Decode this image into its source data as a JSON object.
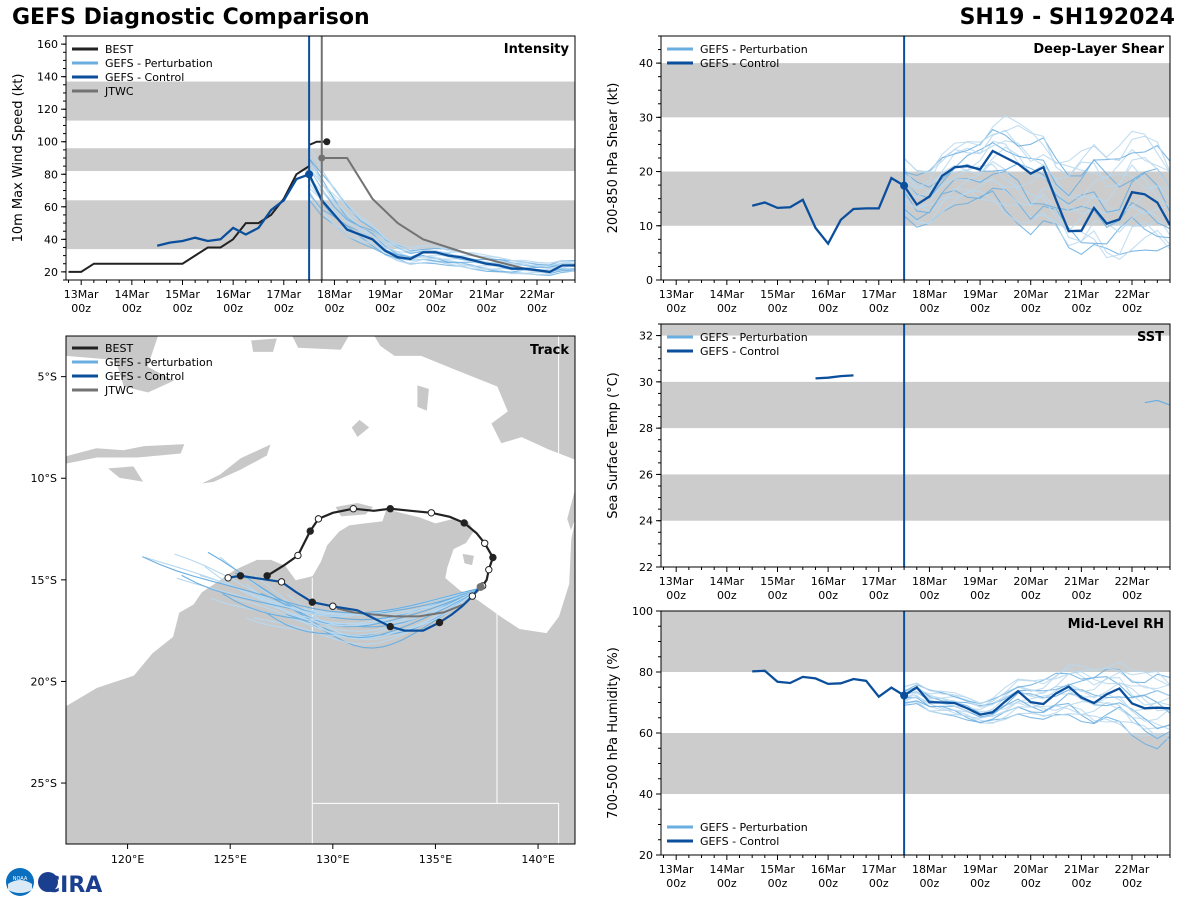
{
  "header": {
    "title": "GEFS Diagnostic Comparison",
    "storm": "SH19 - SH192024"
  },
  "logo": {
    "text": "CIRA",
    "noaa": "NOAA"
  },
  "colors": {
    "best": "#222222",
    "pert": "#6aaee0",
    "pertLight": "#b8d8ef",
    "ctrl": "#0b4f9c",
    "jtwc": "#737373",
    "band": "#cccccc",
    "land": "#c8c8c8"
  },
  "time_axis": {
    "labels": [
      {
        "day": "13Mar",
        "hour": "00z"
      },
      {
        "day": "14Mar",
        "hour": "00z"
      },
      {
        "day": "15Mar",
        "hour": "00z"
      },
      {
        "day": "16Mar",
        "hour": "00z"
      },
      {
        "day": "17Mar",
        "hour": "00z"
      },
      {
        "day": "18Mar",
        "hour": "00z"
      },
      {
        "day": "19Mar",
        "hour": "00z"
      },
      {
        "day": "20Mar",
        "hour": "00z"
      },
      {
        "day": "21Mar",
        "hour": "00z"
      },
      {
        "day": "22Mar",
        "hour": "00z"
      }
    ],
    "range": [
      -0.3,
      9.75
    ],
    "init_time": 4.5
  },
  "chart_data": [
    {
      "id": "intensity",
      "type": "line",
      "title": "Intensity",
      "ylabel": "10m Max Wind Speed (kt)",
      "ylim": [
        15,
        165
      ],
      "yticks": [
        20,
        40,
        60,
        80,
        100,
        120,
        140,
        160
      ],
      "bands": [
        [
          34,
          64
        ],
        [
          82,
          96
        ],
        [
          113,
          137
        ]
      ],
      "legend": [
        "BEST",
        "GEFS - Perturbation",
        "GEFS - Control",
        "JTWC"
      ],
      "vline_gray": 4.75,
      "best": {
        "x": [
          -0.25,
          0,
          0.25,
          0.5,
          0.75,
          1,
          1.25,
          1.5,
          1.75,
          2,
          2.25,
          2.5,
          2.75,
          3,
          3.25,
          3.5,
          3.75,
          4,
          4.25,
          4.5
        ],
        "y": [
          20,
          20,
          25,
          25,
          25,
          25,
          25,
          25,
          25,
          25,
          30,
          35,
          35,
          40,
          50,
          50,
          55,
          65,
          80,
          85
        ],
        "tail": {
          "x": [
            4.5,
            4.65,
            4.85
          ],
          "y": [
            98,
            100,
            100
          ]
        }
      },
      "control": {
        "x": [
          1.5,
          1.75,
          2,
          2.25,
          2.5,
          2.75,
          3,
          3.25,
          3.5,
          3.75,
          4,
          4.25,
          4.5,
          4.75,
          5,
          5.25,
          5.5,
          5.75,
          6,
          6.25,
          6.5,
          6.75,
          7,
          7.25,
          7.5,
          7.75,
          8,
          8.25,
          8.5,
          8.75,
          9,
          9.25,
          9.5,
          9.75
        ],
        "y": [
          36,
          38,
          39,
          41,
          39,
          40,
          47,
          43,
          47,
          58,
          64,
          77,
          80,
          64,
          55,
          46,
          43,
          40,
          33,
          29,
          28,
          32,
          32,
          30,
          29,
          27,
          25,
          24,
          22,
          22,
          21,
          20,
          24,
          24
        ]
      },
      "jtwc": {
        "x": [
          4.75,
          5.25,
          5.75,
          6.25,
          6.75,
          7.25,
          7.75,
          8.25,
          8.75,
          9.25
        ],
        "y": [
          90,
          90,
          65,
          50,
          40,
          35,
          30,
          26,
          22,
          20
        ]
      },
      "pert_envelope": {
        "x": [
          4.5,
          5,
          5.5,
          6,
          6.5,
          7,
          7.5,
          8,
          8.5,
          9,
          9.5,
          9.75
        ],
        "lo": [
          60,
          48,
          38,
          30,
          24,
          22,
          20,
          19,
          18,
          18,
          18,
          18
        ],
        "hi": [
          104,
          80,
          60,
          46,
          38,
          36,
          34,
          32,
          30,
          28,
          28,
          28
        ]
      }
    },
    {
      "id": "shear",
      "type": "line",
      "title": "Deep-Layer Shear",
      "ylabel": "200-850 hPa Shear (kt)",
      "ylim": [
        0,
        45
      ],
      "yticks": [
        0,
        10,
        20,
        30,
        40
      ],
      "bands": [
        [
          10,
          20
        ],
        [
          30,
          40
        ]
      ],
      "legend": [
        "GEFS - Perturbation",
        "GEFS - Control"
      ],
      "control": {
        "x": [
          1.5,
          1.75,
          2,
          2.25,
          2.5,
          2.75,
          3,
          3.25,
          3.5,
          3.75,
          4,
          4.25,
          4.5,
          4.75,
          5,
          5.25,
          5.5,
          5.75,
          6,
          6.25,
          6.5,
          6.75,
          7,
          7.25,
          7.5,
          7.75,
          8,
          8.25,
          8.5,
          8.75,
          9,
          9.25,
          9.5,
          9.75
        ],
        "y": [
          13.7,
          14.3,
          13.3,
          13.4,
          14.8,
          9.6,
          6.7,
          11.1,
          13.1,
          13.2,
          13.2,
          18.8,
          17.4,
          13.9,
          15.4,
          19.2,
          20.8,
          21,
          20.4,
          23.8,
          22.6,
          21.4,
          19.6,
          20.8,
          14.8,
          9,
          9.1,
          13.3,
          10.4,
          11.2,
          16.2,
          15.8,
          14.3,
          10.1
        ]
      },
      "pert_envelope": {
        "x": [
          4.5,
          5,
          5.5,
          6,
          6.5,
          7,
          7.5,
          8,
          8.5,
          9,
          9.5,
          9.75
        ],
        "lo": [
          10,
          8,
          11,
          12,
          8,
          4,
          8,
          6,
          3,
          2,
          3,
          4
        ],
        "hi": [
          24,
          22,
          26,
          28,
          32,
          29,
          26,
          31,
          30,
          31,
          30,
          28
        ]
      }
    },
    {
      "id": "sst",
      "type": "line",
      "title": "SST",
      "ylabel": "Sea Surface Temp (°C)",
      "ylim": [
        22,
        32.5
      ],
      "yticks": [
        22,
        24,
        26,
        28,
        30,
        32
      ],
      "bands": [
        [
          24,
          26
        ],
        [
          28,
          30
        ],
        [
          32,
          34
        ]
      ],
      "legend": [
        "GEFS - Perturbation",
        "GEFS - Control"
      ],
      "control": {
        "x": [
          2.75,
          3,
          3.25,
          3.5
        ],
        "y": [
          30.15,
          30.18,
          30.25,
          30.28
        ]
      },
      "pert_tail": {
        "x": [
          9.25,
          9.5,
          9.75
        ],
        "y": [
          29.1,
          29.2,
          29.0
        ]
      }
    },
    {
      "id": "rh",
      "type": "line",
      "title": "Mid-Level RH",
      "ylabel": "700-500 hPa Humidity (%)",
      "ylim": [
        20,
        100
      ],
      "yticks": [
        20,
        40,
        60,
        80,
        100
      ],
      "bands": [
        [
          40,
          60
        ],
        [
          80,
          100
        ]
      ],
      "legend": [
        "GEFS - Perturbation",
        "GEFS - Control"
      ],
      "control": {
        "x": [
          1.5,
          1.75,
          2,
          2.25,
          2.5,
          2.75,
          3,
          3.25,
          3.5,
          3.75,
          4,
          4.25,
          4.5,
          4.75,
          5,
          5.25,
          5.5,
          5.75,
          6,
          6.25,
          6.5,
          6.75,
          7,
          7.25,
          7.5,
          7.75,
          8,
          8.25,
          8.5,
          8.75,
          9,
          9.25,
          9.5,
          9.75
        ],
        "y": [
          80.2,
          80.4,
          76.8,
          76.4,
          78.4,
          77.9,
          76.1,
          76.3,
          77.7,
          77.1,
          71.9,
          74.9,
          72.3,
          75,
          70.1,
          70,
          69.8,
          68.1,
          66,
          66.8,
          70.4,
          73.7,
          70.1,
          69.5,
          73,
          75.2,
          71.6,
          69.8,
          72.7,
          74.6,
          69.7,
          68.1,
          68.3,
          68.1
        ]
      },
      "pert_envelope": {
        "x": [
          4.5,
          5,
          5.5,
          6,
          6.5,
          7,
          7.5,
          8,
          8.5,
          9,
          9.5,
          9.75
        ],
        "lo": [
          68,
          66,
          64,
          62,
          62,
          64,
          62,
          62,
          60,
          56,
          50,
          52
        ],
        "hi": [
          76,
          76,
          74,
          72,
          76,
          80,
          82,
          86,
          86,
          84,
          84,
          82
        ]
      }
    },
    {
      "id": "track",
      "type": "scatter",
      "title": "Track",
      "xlim": [
        117,
        141.8
      ],
      "ylim": [
        -28,
        -3
      ],
      "xticks": [
        {
          "v": 120,
          "label": "120°E"
        },
        {
          "v": 125,
          "label": "125°E"
        },
        {
          "v": 130,
          "label": "130°E"
        },
        {
          "v": 135,
          "label": "135°E"
        },
        {
          "v": 140,
          "label": "140°E"
        }
      ],
      "yticks": [
        {
          "v": -5,
          "label": "5°S"
        },
        {
          "v": -10,
          "label": "10°S"
        },
        {
          "v": -15,
          "label": "15°S"
        },
        {
          "v": -20,
          "label": "20°S"
        },
        {
          "v": -25,
          "label": "25°S"
        }
      ],
      "legend": [
        "BEST",
        "GEFS - Perturbation",
        "GEFS - Control",
        "JTWC"
      ],
      "best": {
        "lon": [
          126.8,
          127.6,
          128.3,
          128.9,
          129.3,
          130,
          131,
          132,
          132.8,
          133.8,
          134.8,
          135.7,
          136.4,
          137,
          137.4,
          137.8,
          137.6,
          137.5,
          137.3,
          137.2
        ],
        "lat": [
          -14.8,
          -14.3,
          -13.8,
          -12.6,
          -12.0,
          -11.7,
          -11.5,
          -11.6,
          -11.5,
          -11.6,
          -11.7,
          -11.9,
          -12.2,
          -12.7,
          -13.2,
          -13.9,
          -14.5,
          -15.0,
          -15.3,
          -15.4
        ],
        "filled": [
          true,
          false,
          false,
          true,
          false,
          false,
          false,
          false,
          true,
          false,
          false,
          false,
          true,
          false,
          false,
          true,
          false,
          false,
          false,
          false
        ]
      },
      "control": {
        "lon": [
          124.9,
          125.5,
          127.5,
          128.2,
          129,
          130,
          131.2,
          132,
          132.8,
          133.5,
          134.4,
          135.2,
          135.8,
          136.3,
          136.8,
          137.2
        ],
        "lat": [
          -14.9,
          -14.8,
          -15.1,
          -15.6,
          -16.1,
          -16.3,
          -16.5,
          -16.9,
          -17.3,
          -17.5,
          -17.5,
          -17.1,
          -16.7,
          -16.3,
          -15.8,
          -15.3
        ],
        "filled": [
          false,
          true,
          false,
          false,
          true,
          false,
          false,
          false,
          true,
          false,
          false,
          true,
          false,
          false,
          false,
          false
        ]
      },
      "jtwc": {
        "lon": [
          137.2,
          136.4,
          135.4,
          134.2,
          133.0,
          131.9,
          131.0,
          130.2
        ],
        "lat": [
          -15.4,
          -16.2,
          -16.6,
          -16.8,
          -16.8,
          -16.7,
          -16.6,
          -16.4
        ]
      }
    }
  ]
}
